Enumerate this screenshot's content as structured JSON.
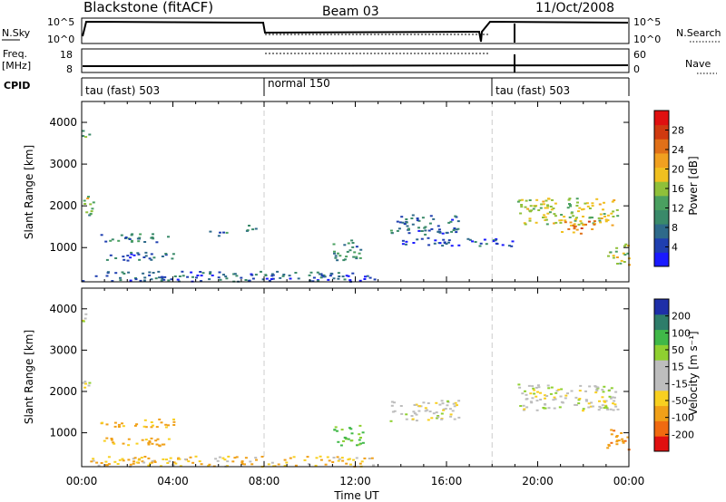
{
  "header": {
    "station": "Blackstone (fitACF)",
    "beam": "Beam 03",
    "date": "11/Oct/2008"
  },
  "colors": {
    "velocity_scale": [
      "#e01010",
      "#f06a10",
      "#f0a018",
      "#f8d020",
      "#bdbdbd",
      "#bdbdbd",
      "#8fd030",
      "#40b848",
      "#2e7d6a",
      "#1e2fa8"
    ],
    "power_scale": [
      "#1a1aff",
      "#1f3fb0",
      "#2e6a8a",
      "#3a8a6a",
      "#4aa060",
      "#8fc03a",
      "#f0c020",
      "#f0a020",
      "#e07018",
      "#d03a10",
      "#e01010"
    ]
  },
  "panels": {
    "nsky": {
      "label": "N.Sky",
      "ticks": [
        "10^5",
        "10^0"
      ],
      "right_ticks": [
        "10^5",
        "10^0"
      ],
      "right_label": "N.Search"
    },
    "freq": {
      "label": "Freq.",
      "unit": "[MHz]",
      "ticks": [
        "18",
        "8"
      ],
      "right_ticks": [
        "60",
        "0"
      ],
      "right_label": "Nave"
    },
    "cpid": {
      "label": "CPID",
      "segments": [
        {
          "label": "tau (fast) 503",
          "start_h": 0
        },
        {
          "label": "normal 150",
          "start_h": 8
        },
        {
          "label": "tau (fast) 503",
          "start_h": 18
        }
      ]
    }
  },
  "chart_data": [
    {
      "type": "heatmap",
      "name": "power",
      "ylabel": "Slant Range [km]",
      "ylim": [
        180,
        4500
      ],
      "yticks": [
        "1000",
        "2000",
        "3000",
        "4000"
      ],
      "xlim": [
        0,
        24
      ],
      "xticks": [
        "00:00",
        "04:00",
        "08:00",
        "12:00",
        "16:00",
        "20:00",
        "00:00"
      ],
      "colorbar": {
        "label": "Power [dB]",
        "ticks": [
          "4",
          "8",
          "12",
          "16",
          "20",
          "24",
          "28"
        ],
        "range": [
          0,
          32
        ]
      },
      "regions": [
        {
          "t": [
            0.0,
            0.3
          ],
          "r": [
            3600,
            3900
          ],
          "v": 12
        },
        {
          "t": [
            0.0,
            0.5
          ],
          "r": [
            2000,
            2300
          ],
          "v": 16
        },
        {
          "t": [
            0.0,
            0.5
          ],
          "r": [
            1700,
            2000
          ],
          "v": 12
        },
        {
          "t": [
            0.8,
            4.0
          ],
          "r": [
            1150,
            1350
          ],
          "v": 9
        },
        {
          "t": [
            0.8,
            4.0
          ],
          "r": [
            700,
            900
          ],
          "v": 7
        },
        {
          "t": [
            5.5,
            6.5
          ],
          "r": [
            1300,
            1420
          ],
          "v": 9
        },
        {
          "t": [
            7.0,
            7.8
          ],
          "r": [
            1400,
            1560
          ],
          "v": 8
        },
        {
          "t": [
            0.0,
            12.8
          ],
          "r": [
            200,
            450
          ],
          "v": 6
        },
        {
          "t": [
            11.0,
            12.3
          ],
          "r": [
            700,
            1200
          ],
          "v": 10
        },
        {
          "t": [
            13.5,
            16.5
          ],
          "r": [
            1300,
            1800
          ],
          "v": 7
        },
        {
          "t": [
            14.0,
            19.0
          ],
          "r": [
            1050,
            1250
          ],
          "v": 5
        },
        {
          "t": [
            19.0,
            23.5
          ],
          "r": [
            1550,
            2200
          ],
          "v": 17
        },
        {
          "t": [
            21.0,
            22.5
          ],
          "r": [
            1350,
            1700
          ],
          "v": 22
        },
        {
          "t": [
            23.0,
            24.0
          ],
          "r": [
            600,
            1100
          ],
          "v": 16
        }
      ]
    },
    {
      "type": "heatmap",
      "name": "velocity",
      "ylabel": "Slant Range [km]",
      "ylim": [
        180,
        4500
      ],
      "yticks": [
        "1000",
        "2000",
        "3000",
        "4000"
      ],
      "xlim": [
        0,
        24
      ],
      "xlabel": "Time UT",
      "xticks": [
        "00:00",
        "04:00",
        "08:00",
        "12:00",
        "16:00",
        "20:00",
        "00:00"
      ],
      "colorbar": {
        "label": "Velocity [m s⁻¹]",
        "ticks": [
          "200",
          "100",
          "50",
          "15",
          "-15",
          "-50",
          "-100",
          "-200"
        ]
      },
      "regions": [
        {
          "t": [
            0.0,
            0.3
          ],
          "r": [
            3600,
            3900
          ],
          "v": 0
        },
        {
          "t": [
            0.0,
            0.5
          ],
          "r": [
            2000,
            2300
          ],
          "v": 0
        },
        {
          "t": [
            0.8,
            4.0
          ],
          "r": [
            1150,
            1350
          ],
          "v": -40
        },
        {
          "t": [
            0.8,
            4.0
          ],
          "r": [
            700,
            900
          ],
          "v": -40
        },
        {
          "t": [
            0.0,
            12.8
          ],
          "r": [
            200,
            450
          ],
          "v": -30
        },
        {
          "t": [
            11.0,
            12.3
          ],
          "r": [
            700,
            1200
          ],
          "v": 40
        },
        {
          "t": [
            13.5,
            16.5
          ],
          "r": [
            1300,
            1800
          ],
          "v": 0
        },
        {
          "t": [
            19.0,
            23.5
          ],
          "r": [
            1550,
            2200
          ],
          "v": 0
        },
        {
          "t": [
            23.0,
            24.0
          ],
          "r": [
            600,
            1100
          ],
          "v": -60
        }
      ]
    }
  ]
}
